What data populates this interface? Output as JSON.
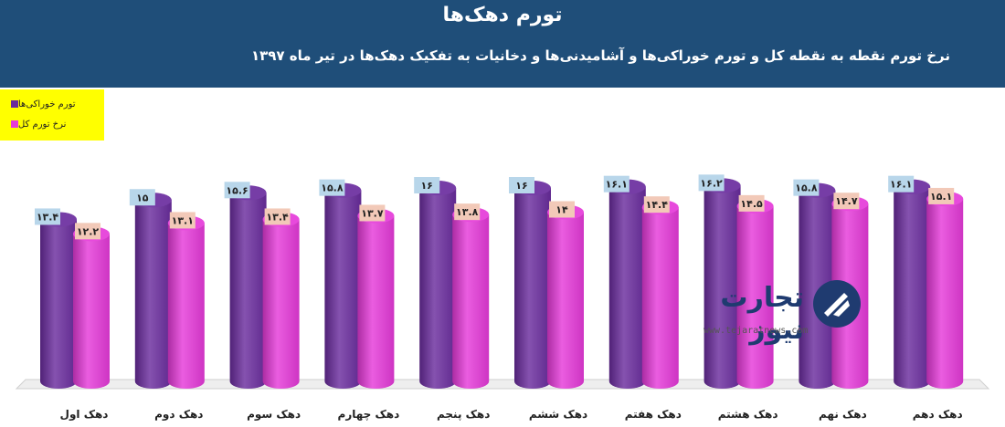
{
  "header": {
    "title": "تورم دهک‌ها",
    "subtitle": "نرخ تورم نقطه به نقطه کل و تورم خوراکی‌ها و آشامیدنی‌ها و دخانیات به تفکیک دهک‌ها در تیر ماه ۱۳۹۷"
  },
  "legend": {
    "items": [
      {
        "label": "تورم خوراکی‌ها",
        "color": "#6a2c9e"
      },
      {
        "label": "نرخ تورم کل",
        "color": "#e53ad9"
      }
    ]
  },
  "watermark": {
    "logo_text": "تجارت نیوز",
    "url": "www.tejaratnews.com"
  },
  "chart_data": {
    "type": "bar",
    "categories": [
      "دهک اول",
      "دهک دوم",
      "دهک سوم",
      "دهک چهارم",
      "دهک پنجم",
      "دهک ششم",
      "دهک هفتم",
      "دهک هشتم",
      "دهک نهم",
      "دهک دهم"
    ],
    "series": [
      {
        "name": "تورم خوراکی‌ها",
        "color": "#6a2c9e",
        "values": [
          13.4,
          15,
          15.6,
          15.8,
          16,
          16,
          16.1,
          16.2,
          15.8,
          16.1
        ],
        "labels": [
          "۱۳.۴",
          "۱۵",
          "۱۵.۶",
          "۱۵.۸",
          "۱۶",
          "۱۶",
          "۱۶.۱",
          "۱۶.۲",
          "۱۵.۸",
          "۱۶.۱"
        ]
      },
      {
        "name": "نرخ تورم کل",
        "color": "#e53ad9",
        "values": [
          12.2,
          13.1,
          13.4,
          13.7,
          13.8,
          14,
          14.4,
          14.5,
          14.7,
          15.1
        ],
        "labels": [
          "۱۲.۲",
          "۱۳.۱",
          "۱۳.۴",
          "۱۳.۷",
          "۱۳.۸",
          "۱۴",
          "۱۴.۴",
          "۱۴.۵",
          "۱۴.۷",
          "۱۵.۱"
        ]
      }
    ],
    "ylim": [
      0,
      16.5
    ],
    "grid": false,
    "legend_position": "top-left"
  }
}
